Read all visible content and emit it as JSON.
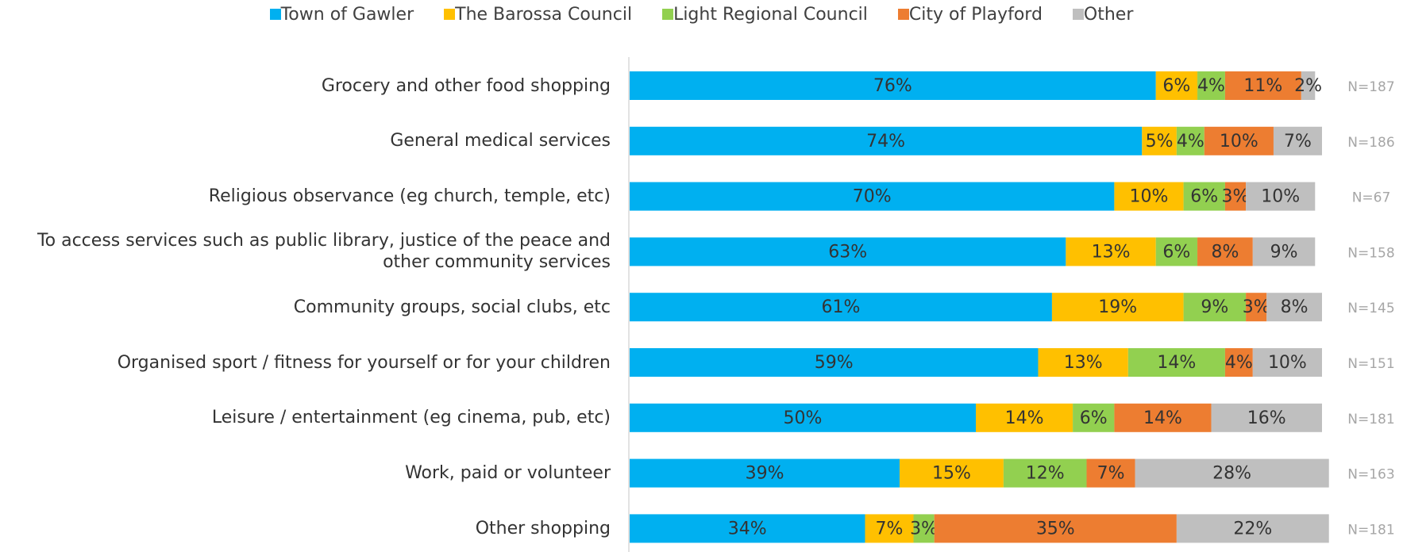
{
  "chart_data": {
    "type": "stacked_bar_horizontal",
    "categories": [
      "Grocery and other food shopping",
      "General medical services",
      "Religious observance (eg church, temple, etc)",
      "To access services such as public library, justice of the peace and other community services",
      "Community groups, social clubs, etc",
      "Organised sport / fitness for yourself or for your children",
      "Leisure / entertainment (eg cinema, pub, etc)",
      "Work, paid or volunteer",
      "Other shopping"
    ],
    "series": [
      {
        "name": "Town of Gawler",
        "color": "#00b0f0",
        "values": [
          76,
          74,
          70,
          63,
          61,
          59,
          50,
          39,
          34
        ],
        "value_labels": [
          "76%",
          "74%",
          "70%",
          "63%",
          "61%",
          "59%",
          "50%",
          "39%",
          "34%"
        ]
      },
      {
        "name": "The Barossa Council",
        "color": "#ffc000",
        "values": [
          6,
          5,
          10,
          13,
          19,
          13,
          14,
          15,
          7
        ],
        "value_labels": [
          "6%",
          "5%",
          "10%",
          "13%",
          "19%",
          "13%",
          "14%",
          "15%",
          "7%"
        ]
      },
      {
        "name": "Light Regional Council",
        "color": "#92d050",
        "values": [
          4,
          4,
          6,
          6,
          9,
          14,
          6,
          12,
          3
        ],
        "value_labels": [
          "4%",
          "4%",
          "6%",
          "6%",
          "9%",
          "14%",
          "6%",
          "12%",
          "3%"
        ]
      },
      {
        "name": "City of Playford",
        "color": "#ed7d31",
        "values": [
          11,
          10,
          3,
          8,
          3,
          4,
          14,
          7,
          35
        ],
        "value_labels": [
          "11%",
          "10%",
          "3%",
          "8%",
          "3%",
          "4%",
          "14%",
          "7%",
          "35%"
        ]
      },
      {
        "name": "Other",
        "color": "#bfbfbf",
        "values": [
          2,
          7,
          10,
          9,
          8,
          10,
          16,
          28,
          22
        ],
        "value_labels": [
          "2%",
          "7%",
          "10%",
          "9%",
          "8%",
          "10%",
          "16%",
          "28%",
          "22%"
        ]
      }
    ],
    "n_labels": [
      "N=187",
      "N=186",
      "N=67",
      "N=158",
      "N=145",
      "N=151",
      "N=181",
      "N=163",
      "N=181"
    ],
    "xlim": [
      0,
      100
    ]
  }
}
